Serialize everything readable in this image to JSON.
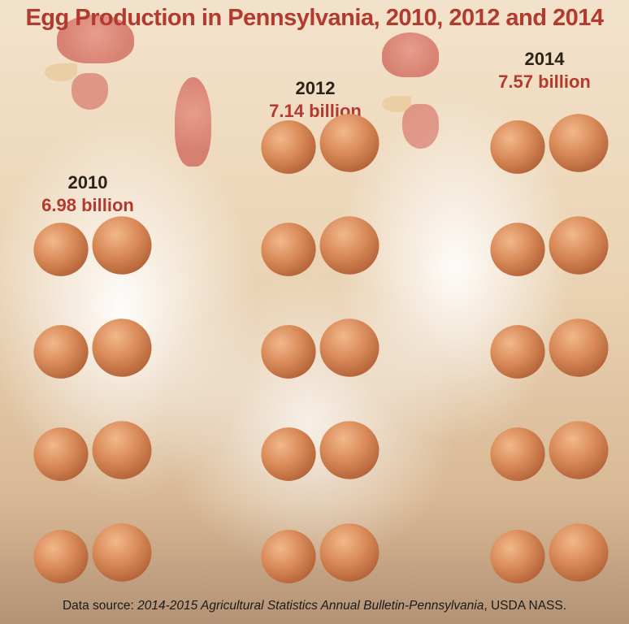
{
  "title": "Egg Production in Pennsylvania, 2010, 2012 and 2014",
  "chart_data": {
    "type": "bar",
    "title": "Egg Production in Pennsylvania, 2010, 2012 and 2014",
    "categories": [
      "2010",
      "2012",
      "2014"
    ],
    "value_labels": [
      "6.98 billion",
      "7.14 billion",
      "7.57 billion"
    ],
    "values": [
      6.98,
      7.14,
      7.57
    ],
    "unit": "billion",
    "pictograph_egg_pairs": [
      4,
      5,
      5
    ],
    "grid": false,
    "legend": "none"
  },
  "colors": {
    "title": "#b23a2e",
    "value": "#b23a2e",
    "year": "#2b2218",
    "egg": "#d98a58"
  },
  "source": {
    "prefix": "Data source: ",
    "publication": "2014-2015 Agricultural Statistics Annual Bulletin-Pennsylvania",
    "suffix": ", USDA NASS."
  }
}
